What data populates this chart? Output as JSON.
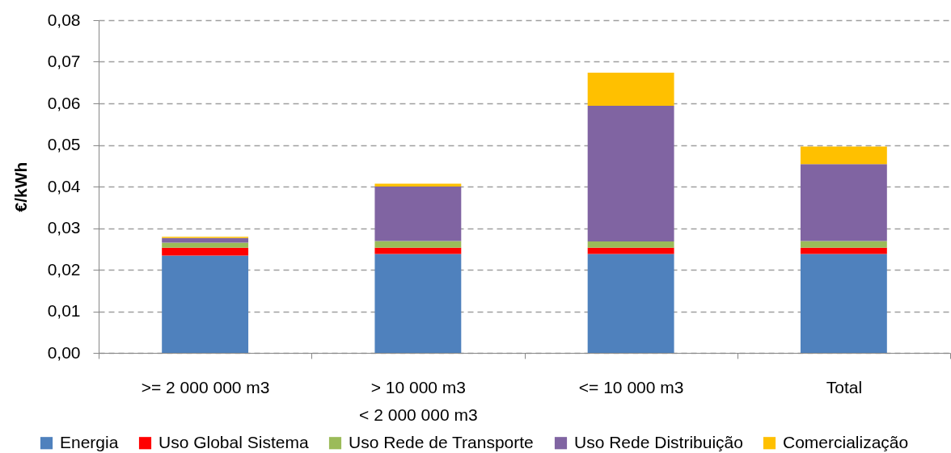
{
  "chart_data": {
    "type": "bar",
    "ylabel": "€/kWh",
    "categories": [
      ">= 2 000 000 m3",
      "> 10 000 m3\n< 2 000 000 m3",
      "<= 10 000 m3",
      "Total"
    ],
    "series": [
      {
        "name": "Energia",
        "color": "#4f81bd",
        "values": [
          0.0234,
          0.0238,
          0.0238,
          0.0238
        ]
      },
      {
        "name": "Uso Global Sistema",
        "color": "#ff0000",
        "values": [
          0.0019,
          0.0015,
          0.0015,
          0.0015
        ]
      },
      {
        "name": "Uso Rede de Transporte",
        "color": "#9bbb59",
        "values": [
          0.0012,
          0.0016,
          0.0015,
          0.0016
        ]
      },
      {
        "name": "Uso Rede Distribuição",
        "color": "#8064a2",
        "values": [
          0.0011,
          0.0131,
          0.0326,
          0.0185
        ]
      },
      {
        "name": "Comercialização",
        "color": "#ffc000",
        "values": [
          0.0003,
          0.0007,
          0.008,
          0.0042
        ]
      }
    ],
    "stacked": true,
    "ylim": [
      0,
      0.08
    ],
    "yticks": [
      {
        "value": 0,
        "label": "0,00"
      },
      {
        "value": 0.01,
        "label": "0,01"
      },
      {
        "value": 0.02,
        "label": "0,02"
      },
      {
        "value": 0.03,
        "label": "0,03"
      },
      {
        "value": 0.04,
        "label": "0,04"
      },
      {
        "value": 0.05,
        "label": "0,05"
      },
      {
        "value": 0.06,
        "label": "0,06"
      },
      {
        "value": 0.07,
        "label": "0,07"
      },
      {
        "value": 0.08,
        "label": "0,08"
      }
    ],
    "grid": "y",
    "legend": "bottom"
  }
}
